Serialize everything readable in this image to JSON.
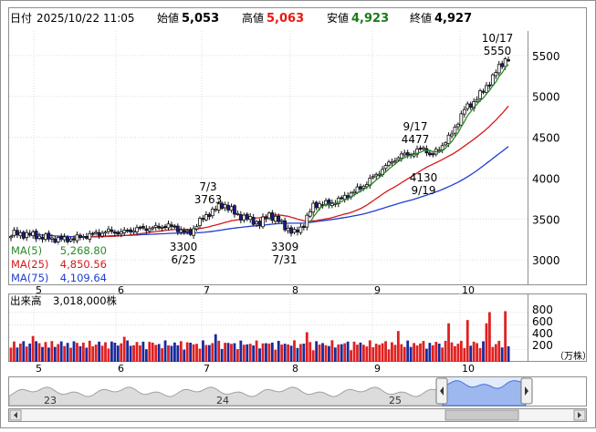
{
  "header": {
    "date_label": "日付",
    "date_value": "2025/10/22 11:05",
    "open_label": "始値",
    "open_value": "5,053",
    "high_label": "高値",
    "high_value": "5,063",
    "low_label": "安値",
    "low_value": "4,923",
    "close_label": "終値",
    "close_value": "4,927"
  },
  "colors": {
    "high": "#e8190e",
    "low": "#1a7a1a",
    "up_candle": "#ffffff",
    "down_candle": "#1a1a8c",
    "ma5": "#2a8a2a",
    "ma25": "#d81818",
    "ma75": "#1f3fcf",
    "volume_up": "#e02020",
    "volume_down": "#1a2a9c"
  },
  "legend": {
    "ma5_label": "MA(5)",
    "ma5_value": "5,268.80",
    "ma25_label": "MA(25)",
    "ma25_value": "4,850.56",
    "ma75_label": "MA(75)",
    "ma75_value": "4,109.64"
  },
  "volume_panel": {
    "label": "出来高",
    "value": "3,018,000株",
    "unit": "（万株）",
    "ticks": [
      "800",
      "600",
      "400",
      "200"
    ]
  },
  "navigator": {
    "years": [
      "23",
      "24",
      "25"
    ]
  },
  "chart_data": [
    {
      "type": "candlestick",
      "x_axis_months": [
        "5",
        "6",
        "7",
        "8",
        "9",
        "10"
      ],
      "y_ticks": [
        3000,
        3500,
        4000,
        4500,
        5000,
        5500
      ],
      "ylim": [
        2700,
        5800
      ],
      "grid": true,
      "annotations": [
        {
          "label_top": "7/3",
          "label_bottom": "3763"
        },
        {
          "label_top": "3300",
          "label_bottom": "6/25"
        },
        {
          "label_top": "3309",
          "label_bottom": "7/31"
        },
        {
          "label_top": "9/17",
          "label_bottom": "4477"
        },
        {
          "label_top": "4130",
          "label_bottom": "9/19"
        },
        {
          "label_top": "10/17",
          "label_bottom": "5550"
        }
      ],
      "series": [
        {
          "name": "MA(5)",
          "value": 5268.8
        },
        {
          "name": "MA(25)",
          "value": 4850.56
        },
        {
          "name": "MA(75)",
          "value": 4109.64
        }
      ],
      "last_candle": {
        "open": 5053,
        "high": 5063,
        "low": 4923,
        "close": 4927
      }
    },
    {
      "type": "bar",
      "title": "出来高",
      "y_ticks": [
        200,
        400,
        600,
        800
      ],
      "ylim": [
        0,
        900
      ],
      "unit": "万株"
    }
  ]
}
